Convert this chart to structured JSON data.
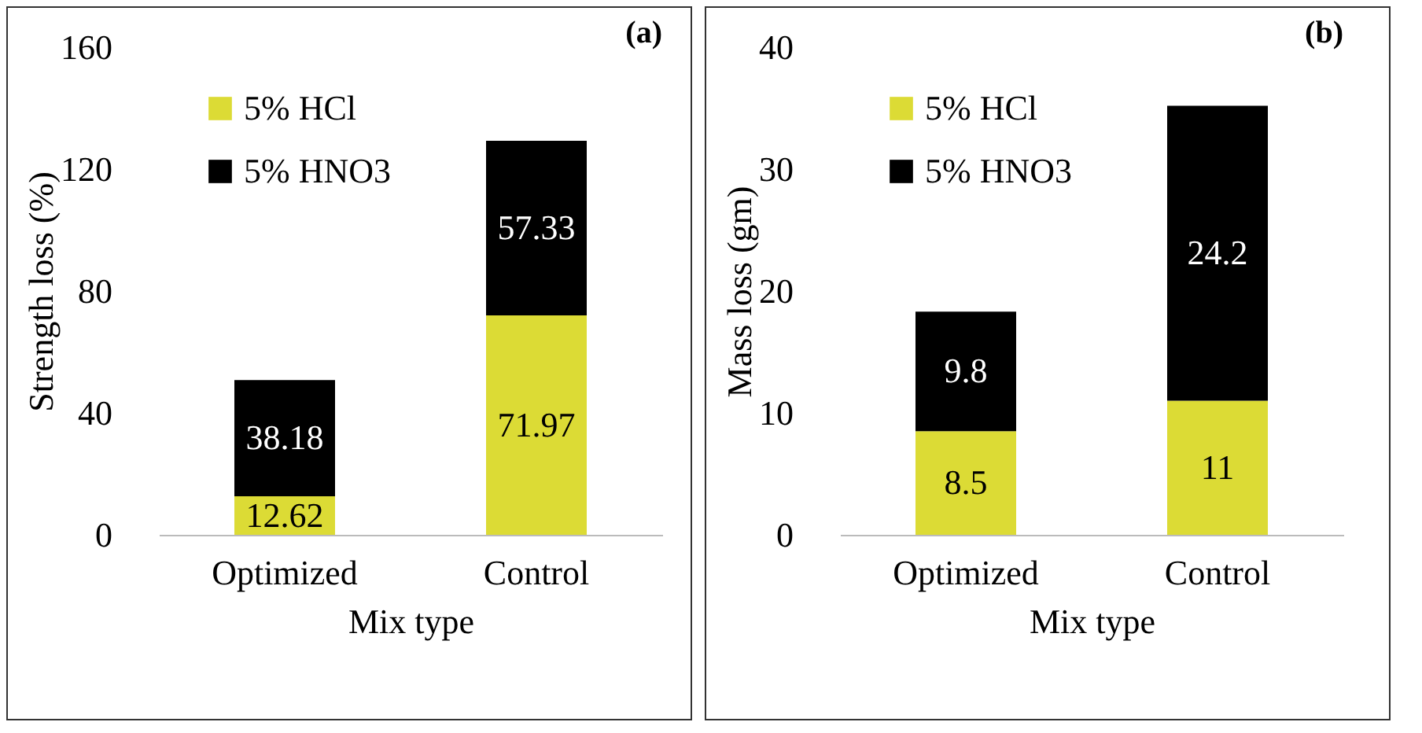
{
  "chart_data": [
    {
      "type": "bar",
      "title": "(a)",
      "xlabel": "Mix type",
      "ylabel": "Strength loss (%)",
      "categories": [
        "Optimized",
        "Control"
      ],
      "stacked": true,
      "data_labels": true,
      "legend": "top left",
      "grid": false,
      "ylim": [
        0,
        160
      ],
      "yticks": [
        0,
        40,
        80,
        120,
        160
      ],
      "series": [
        {
          "name": "5% HCl",
          "color": "#dcdb35",
          "values": [
            12.62,
            71.97
          ]
        },
        {
          "name": "5% HNO3",
          "color": "#000000",
          "values": [
            38.18,
            57.33
          ]
        }
      ]
    },
    {
      "type": "bar",
      "title": "(b)",
      "xlabel": "Mix type",
      "ylabel": "Mass loss (gm)",
      "categories": [
        "Optimized",
        "Control"
      ],
      "stacked": true,
      "data_labels": true,
      "legend": "top left",
      "grid": false,
      "ylim": [
        0,
        40
      ],
      "yticks": [
        0,
        10,
        20,
        30,
        40
      ],
      "series": [
        {
          "name": "5% HCl",
          "color": "#dcdb35",
          "values": [
            8.5,
            11
          ]
        },
        {
          "name": "5% HNO3",
          "color": "#000000",
          "values": [
            9.8,
            24.2
          ]
        }
      ]
    }
  ]
}
